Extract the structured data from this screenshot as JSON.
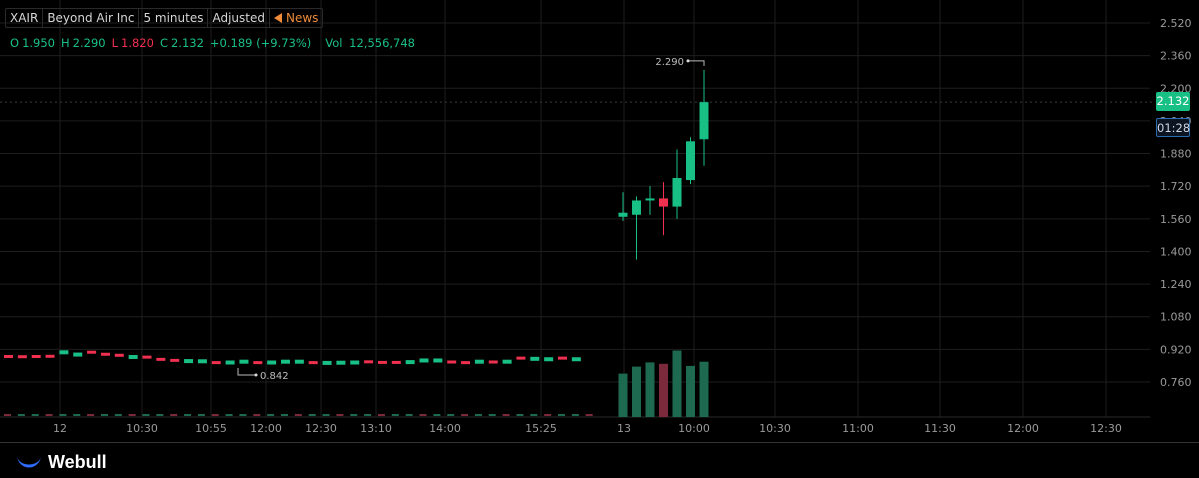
{
  "header": {
    "symbol": "XAIR",
    "company": "Beyond Air Inc",
    "interval": "5 minutes",
    "adjustment": "Adjusted",
    "news": "News"
  },
  "ohlc": {
    "o_label": "O",
    "o": "1.950",
    "h_label": "H",
    "h": "2.290",
    "l_label": "L",
    "l": "1.820",
    "c_label": "C",
    "c": "2.132",
    "change": "+0.189 (+9.73%)",
    "vol_label": "Vol",
    "vol": "12,556,748"
  },
  "badges": {
    "last_price": "2.132",
    "countdown": "01:28"
  },
  "brand": {
    "name": "Webull"
  },
  "colors": {
    "up": "#19c086",
    "down": "#f0304f",
    "grid": "#1e1e1e",
    "accent_blue": "#2b6cb0"
  },
  "chart_data": {
    "type": "candlestick",
    "y_ticks": [
      "2.520",
      "2.360",
      "2.200",
      "2.040",
      "1.880",
      "1.720",
      "1.560",
      "1.400",
      "1.240",
      "1.080",
      "0.920",
      "0.760"
    ],
    "ylim": [
      0.6,
      2.6
    ],
    "x_ticks": [
      "12",
      "10:30",
      "10:55",
      "12:00",
      "12:30",
      "13:10",
      "14:00",
      "15:25",
      "13",
      "10:00",
      "10:30",
      "11:00",
      "11:30",
      "12:00",
      "12:30"
    ],
    "annotations": {
      "high": "2.290",
      "low": "0.842"
    },
    "previous_day_flat": [
      {
        "x": 0,
        "c": 0.885,
        "dir": "down"
      },
      {
        "x": 1,
        "c": 0.884,
        "dir": "down"
      },
      {
        "x": 2,
        "c": 0.885,
        "dir": "down"
      },
      {
        "x": 3,
        "c": 0.886,
        "dir": "down"
      },
      {
        "x": 4,
        "c": 0.908,
        "dir": "up"
      },
      {
        "x": 5,
        "c": 0.897,
        "dir": "up"
      },
      {
        "x": 6,
        "c": 0.906,
        "dir": "down"
      },
      {
        "x": 7,
        "c": 0.896,
        "dir": "down"
      },
      {
        "x": 8,
        "c": 0.891,
        "dir": "down"
      },
      {
        "x": 9,
        "c": 0.885,
        "dir": "up"
      },
      {
        "x": 10,
        "c": 0.882,
        "dir": "down"
      },
      {
        "x": 11,
        "c": 0.871,
        "dir": "down"
      },
      {
        "x": 12,
        "c": 0.866,
        "dir": "down"
      },
      {
        "x": 13,
        "c": 0.865,
        "dir": "up"
      },
      {
        "x": 14,
        "c": 0.864,
        "dir": "up"
      },
      {
        "x": 15,
        "c": 0.855,
        "dir": "down"
      },
      {
        "x": 16,
        "c": 0.858,
        "dir": "up"
      },
      {
        "x": 17,
        "c": 0.862,
        "dir": "up"
      },
      {
        "x": 18,
        "c": 0.855,
        "dir": "down"
      },
      {
        "x": 19,
        "c": 0.858,
        "dir": "up"
      },
      {
        "x": 20,
        "c": 0.862,
        "dir": "up"
      },
      {
        "x": 21,
        "c": 0.862,
        "dir": "up"
      },
      {
        "x": 22,
        "c": 0.855,
        "dir": "down"
      },
      {
        "x": 23,
        "c": 0.856,
        "dir": "up"
      },
      {
        "x": 24,
        "c": 0.857,
        "dir": "up"
      },
      {
        "x": 25,
        "c": 0.858,
        "dir": "up"
      },
      {
        "x": 26,
        "c": 0.859,
        "dir": "down"
      },
      {
        "x": 27,
        "c": 0.856,
        "dir": "down"
      },
      {
        "x": 28,
        "c": 0.856,
        "dir": "down"
      },
      {
        "x": 29,
        "c": 0.86,
        "dir": "up"
      },
      {
        "x": 30,
        "c": 0.868,
        "dir": "up"
      },
      {
        "x": 31,
        "c": 0.868,
        "dir": "up"
      },
      {
        "x": 32,
        "c": 0.858,
        "dir": "down"
      },
      {
        "x": 33,
        "c": 0.855,
        "dir": "down"
      },
      {
        "x": 34,
        "c": 0.862,
        "dir": "up"
      },
      {
        "x": 35,
        "c": 0.858,
        "dir": "down"
      },
      {
        "x": 36,
        "c": 0.862,
        "dir": "up"
      },
      {
        "x": 37,
        "c": 0.877,
        "dir": "down"
      },
      {
        "x": 38,
        "c": 0.876,
        "dir": "up"
      },
      {
        "x": 39,
        "c": 0.874,
        "dir": "up"
      },
      {
        "x": 40,
        "c": 0.877,
        "dir": "down"
      },
      {
        "x": 41,
        "c": 0.874,
        "dir": "up"
      }
    ],
    "candles": [
      {
        "o": 1.57,
        "h": 1.69,
        "l": 1.55,
        "c": 1.59
      },
      {
        "o": 1.58,
        "h": 1.67,
        "l": 1.36,
        "c": 1.65
      },
      {
        "o": 1.65,
        "h": 1.72,
        "l": 1.58,
        "c": 1.66
      },
      {
        "o": 1.66,
        "h": 1.74,
        "l": 1.48,
        "c": 1.62
      },
      {
        "o": 1.62,
        "h": 1.9,
        "l": 1.56,
        "c": 1.76
      },
      {
        "o": 1.75,
        "h": 1.96,
        "l": 1.73,
        "c": 1.94
      },
      {
        "o": 1.95,
        "h": 2.29,
        "l": 1.82,
        "c": 2.132
      }
    ],
    "volume_bars": [
      {
        "v": 0.62,
        "dir": "up"
      },
      {
        "v": 0.72,
        "dir": "up"
      },
      {
        "v": 0.78,
        "dir": "up"
      },
      {
        "v": 0.76,
        "dir": "down"
      },
      {
        "v": 0.95,
        "dir": "up"
      },
      {
        "v": 0.73,
        "dir": "up"
      },
      {
        "v": 0.79,
        "dir": "up"
      }
    ]
  }
}
